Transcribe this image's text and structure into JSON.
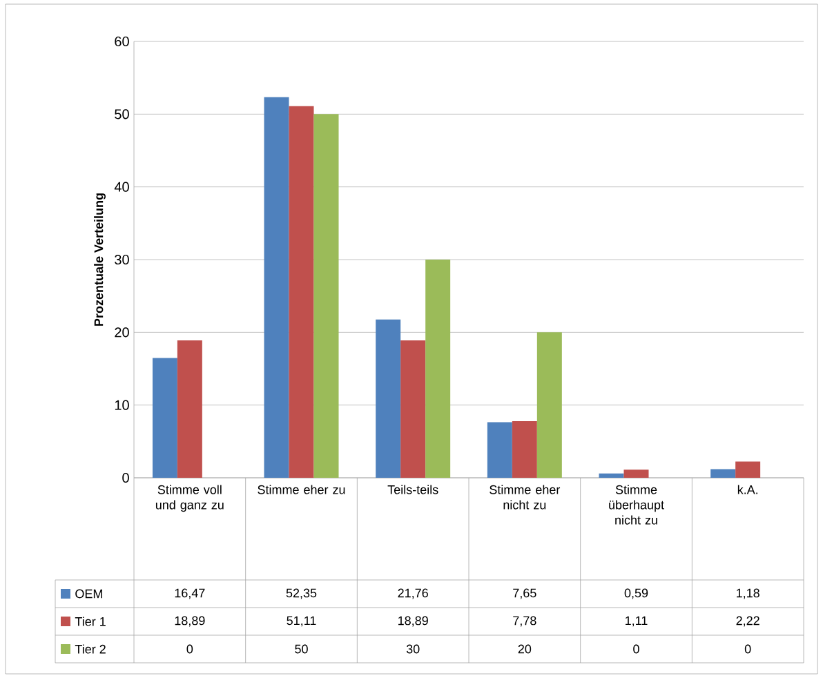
{
  "chart_data": {
    "type": "bar",
    "ylabel": "Prozentuale Verteilung",
    "categories": [
      "Stimme voll und ganz zu",
      "Stimme eher zu",
      "Teils-teils",
      "Stimme eher nicht zu",
      "Stimme überhaupt nicht zu",
      "k.A."
    ],
    "series": [
      {
        "name": "OEM",
        "color": "#4f81bd",
        "values": [
          16.47,
          52.35,
          21.76,
          7.65,
          0.59,
          1.18
        ],
        "value_labels": [
          "16,47",
          "52,35",
          "21,76",
          "7,65",
          "0,59",
          "1,18"
        ]
      },
      {
        "name": "Tier 1",
        "color": "#c0504d",
        "values": [
          18.89,
          51.11,
          18.89,
          7.78,
          1.11,
          2.22
        ],
        "value_labels": [
          "18,89",
          "51,11",
          "18,89",
          "7,78",
          "1,11",
          "2,22"
        ]
      },
      {
        "name": "Tier 2",
        "color": "#9bbb59",
        "values": [
          0,
          50,
          30,
          20,
          0,
          0
        ],
        "value_labels": [
          "0",
          "50",
          "30",
          "20",
          "0",
          "0"
        ]
      }
    ],
    "ylim": [
      0,
      60
    ],
    "yticks": [
      0,
      10,
      20,
      30,
      40,
      50,
      60
    ],
    "grid": "y",
    "legend": "bottom"
  }
}
